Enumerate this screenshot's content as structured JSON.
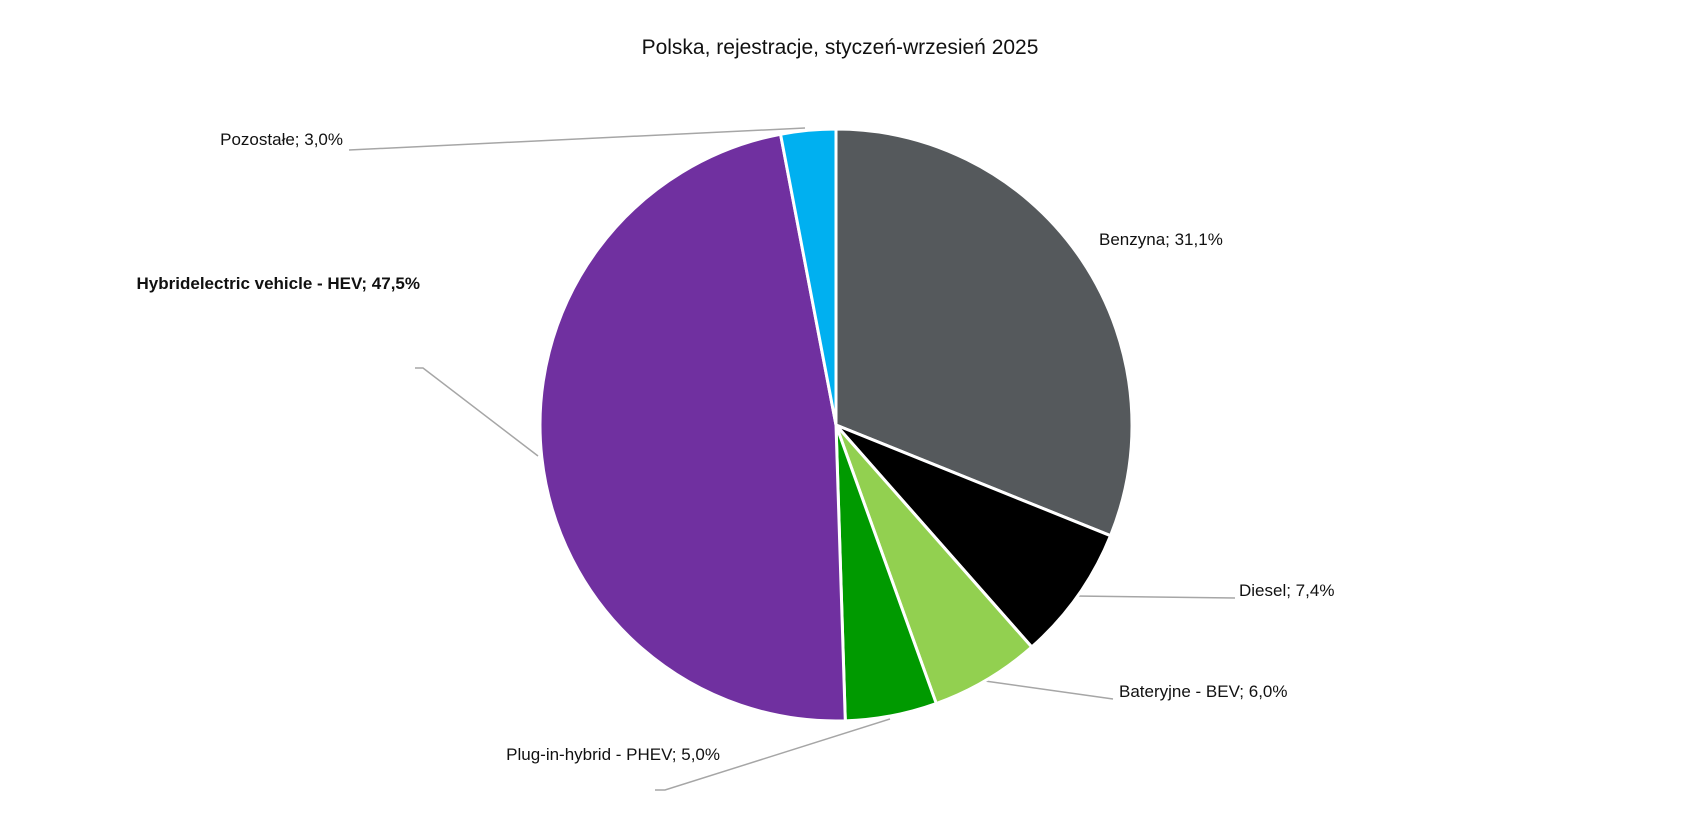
{
  "chart_data": {
    "type": "pie",
    "title": "Polska, rejestracje, styczeń-wrzesień 2025",
    "unit": "%",
    "start_angle_deg": 0,
    "direction": "clockwise",
    "slices": [
      {
        "label": "Benzyna; 31,1%",
        "name": "Benzyna",
        "value": 31.1,
        "color": "#55595c",
        "bold": false,
        "label_anchor": "right"
      },
      {
        "label": "Diesel; 7,4%",
        "name": "Diesel",
        "value": 7.4,
        "color": "#000000",
        "bold": false,
        "label_anchor": "right"
      },
      {
        "label": "Bateryjne - BEV; 6,0%",
        "name": "Bateryjne - BEV",
        "value": 6.0,
        "color": "#92d050",
        "bold": false,
        "label_anchor": "right"
      },
      {
        "label": "Plug-in-hybrid - PHEV; 5,0%",
        "name": "Plug-in-hybrid - PHEV",
        "value": 5.0,
        "color": "#009a00",
        "bold": false,
        "label_anchor": "left"
      },
      {
        "label": "Hybridelectric vehicle - HEV; 47,5%",
        "name": "Hybridelectric vehicle - HEV",
        "value": 47.5,
        "color": "#7030a0",
        "bold": true,
        "label_anchor": "left"
      },
      {
        "label": "Pozostałe; 3,0%",
        "name": "Pozostałe",
        "value": 3.0,
        "color": "#00b0f0",
        "bold": false,
        "label_anchor": "left"
      }
    ]
  }
}
